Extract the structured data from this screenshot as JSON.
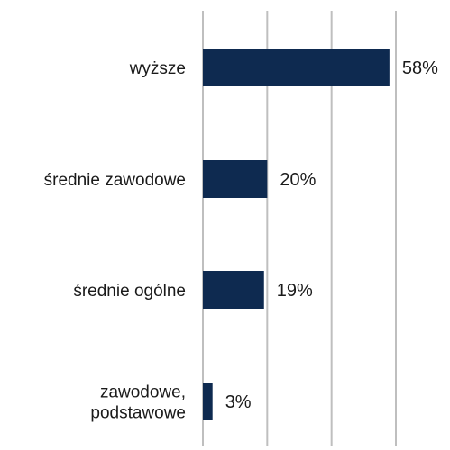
{
  "chart_data": {
    "type": "bar",
    "orientation": "horizontal",
    "categories": [
      [
        "wyższe"
      ],
      [
        "średnie zawodowe"
      ],
      [
        "średnie ogólne"
      ],
      [
        "zawodowe,",
        "podstawowe"
      ]
    ],
    "values": [
      58,
      20,
      19,
      3
    ],
    "value_labels": [
      "58%",
      "20%",
      "19%",
      "3%"
    ],
    "unit": "%",
    "xlim": [
      0,
      60
    ],
    "grid": "vertical",
    "grid_ticks": [
      0,
      20,
      40,
      60
    ],
    "bar_color": "#0e2a50",
    "grid_color": "#bfbfbf",
    "legend": "none"
  }
}
